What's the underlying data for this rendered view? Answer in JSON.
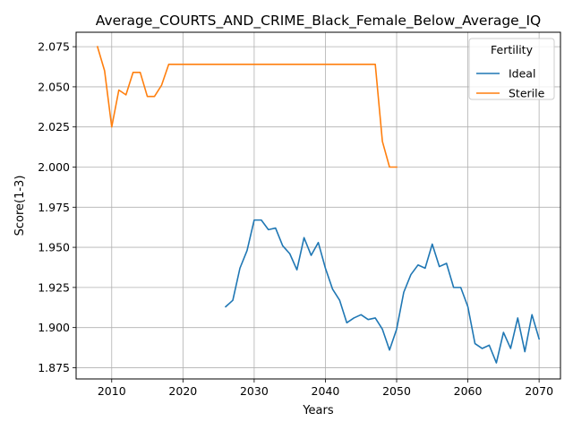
{
  "chart_data": {
    "type": "line",
    "title": "Average_COURTS_AND_CRIME_Black_Female_Below_Average_IQ",
    "xlabel": "Years",
    "ylabel": "Score(1-3)",
    "xlim": [
      2005,
      2073
    ],
    "ylim": [
      1.868,
      2.084
    ],
    "xticks": [
      2010,
      2020,
      2030,
      2040,
      2050,
      2060,
      2070
    ],
    "yticks": [
      1.875,
      1.9,
      1.925,
      1.95,
      1.975,
      2.0,
      2.025,
      2.05,
      2.075
    ],
    "xtick_labels": [
      "2010",
      "2020",
      "2030",
      "2040",
      "2050",
      "2060",
      "2070"
    ],
    "ytick_labels": [
      "1.875",
      "1.900",
      "1.925",
      "1.950",
      "1.975",
      "2.000",
      "2.025",
      "2.050",
      "2.075"
    ],
    "grid": true,
    "legend": {
      "title": "Fertility",
      "placement": "top-right"
    },
    "series": [
      {
        "name": "Ideal",
        "color": "#1f77b4",
        "x": [
          2026,
          2027,
          2028,
          2029,
          2030,
          2031,
          2032,
          2033,
          2034,
          2035,
          2036,
          2037,
          2038,
          2039,
          2040,
          2041,
          2042,
          2043,
          2044,
          2045,
          2046,
          2047,
          2048,
          2049,
          2050,
          2051,
          2052,
          2053,
          2054,
          2055,
          2056,
          2057,
          2058,
          2059,
          2060,
          2061,
          2062,
          2063,
          2064,
          2065,
          2066,
          2067,
          2068,
          2069,
          2070
        ],
        "y": [
          1.913,
          1.917,
          1.937,
          1.948,
          1.967,
          1.967,
          1.961,
          1.962,
          1.951,
          1.946,
          1.936,
          1.956,
          1.945,
          1.953,
          1.937,
          1.924,
          1.917,
          1.903,
          1.906,
          1.908,
          1.905,
          1.906,
          1.899,
          1.886,
          1.899,
          1.922,
          1.933,
          1.939,
          1.937,
          1.952,
          1.938,
          1.94,
          1.925,
          1.925,
          1.913,
          1.89,
          1.887,
          1.889,
          1.878,
          1.897,
          1.887,
          1.906,
          1.885,
          1.908,
          1.893
        ]
      },
      {
        "name": "Sterile",
        "color": "#ff7f0e",
        "x": [
          2008,
          2009,
          2010,
          2011,
          2012,
          2013,
          2014,
          2015,
          2016,
          2017,
          2018,
          2019,
          2020,
          2021,
          2022,
          2023,
          2024,
          2025,
          2026,
          2027,
          2028,
          2029,
          2030,
          2031,
          2032,
          2033,
          2034,
          2035,
          2036,
          2037,
          2038,
          2039,
          2040,
          2041,
          2042,
          2043,
          2044,
          2045,
          2046,
          2047,
          2048,
          2049,
          2050
        ],
        "y": [
          2.075,
          2.06,
          2.025,
          2.048,
          2.045,
          2.059,
          2.059,
          2.044,
          2.044,
          2.051,
          2.064,
          2.064,
          2.064,
          2.064,
          2.064,
          2.064,
          2.064,
          2.064,
          2.064,
          2.064,
          2.064,
          2.064,
          2.064,
          2.064,
          2.064,
          2.064,
          2.064,
          2.064,
          2.064,
          2.064,
          2.064,
          2.064,
          2.064,
          2.064,
          2.064,
          2.064,
          2.064,
          2.064,
          2.064,
          2.064,
          2.016,
          2.0,
          2.0
        ]
      }
    ]
  }
}
